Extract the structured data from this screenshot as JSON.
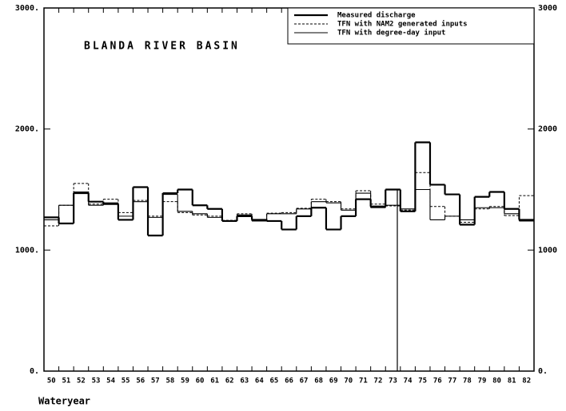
{
  "chart_data": {
    "type": "step",
    "title": "BLANDA RIVER BASIN",
    "x_label": "Wateryear",
    "categories": [
      "50",
      "51",
      "52",
      "53",
      "54",
      "55",
      "56",
      "57",
      "58",
      "59",
      "60",
      "61",
      "62",
      "63",
      "64",
      "65",
      "66",
      "67",
      "68",
      "69",
      "70",
      "71",
      "72",
      "73",
      "74",
      "75",
      "76",
      "77",
      "78",
      "79",
      "80",
      "81",
      "82"
    ],
    "series": [
      {
        "name": "Measured discharge",
        "color": "#000000",
        "line_style": "thick",
        "values": [
          1270,
          1220,
          1470,
          1400,
          1380,
          1250,
          1520,
          1120,
          1470,
          1500,
          1370,
          1340,
          1240,
          1280,
          1250,
          1240,
          1170,
          1280,
          1350,
          1170,
          1280,
          1420,
          1360,
          1500,
          1320,
          1890,
          1540,
          1460,
          1210,
          1440,
          1480,
          1340,
          1250
        ]
      },
      {
        "name": "TFN with NAM2 generated inputs",
        "color": "#000000",
        "line_style": "dashed",
        "values": [
          1200,
          1370,
          1550,
          1380,
          1420,
          1310,
          1410,
          1280,
          1400,
          1310,
          1290,
          1280,
          1245,
          1300,
          1245,
          1305,
          1310,
          1345,
          1420,
          1400,
          1340,
          1490,
          1380,
          1365,
          1330,
          1640,
          1360,
          1280,
          1230,
          1340,
          1360,
          1285,
          1450
        ]
      },
      {
        "name": "TFN with degree-day input",
        "color": "#000000",
        "line_style": "thin",
        "values": [
          1250,
          1370,
          1480,
          1370,
          1390,
          1280,
          1400,
          1270,
          1460,
          1320,
          1300,
          1270,
          1240,
          1290,
          1240,
          1300,
          1300,
          1340,
          1400,
          1390,
          1330,
          1470,
          1350,
          1370,
          1340,
          1500,
          1250,
          1280,
          1250,
          1350,
          1350,
          1300,
          1240
        ]
      }
    ],
    "ylim": [
      0,
      3000
    ],
    "yticks": [
      {
        "value": 0,
        "label": "0."
      },
      {
        "value": 1000,
        "label": "1000."
      },
      {
        "value": 2000,
        "label": "2000."
      },
      {
        "value": 3000,
        "label": "3000."
      }
    ],
    "y2lim": [
      0,
      3000
    ],
    "y2ticks": [
      {
        "value": 0,
        "label": "0."
      },
      1000,
      2000,
      3000
    ],
    "legend": "upper right"
  }
}
